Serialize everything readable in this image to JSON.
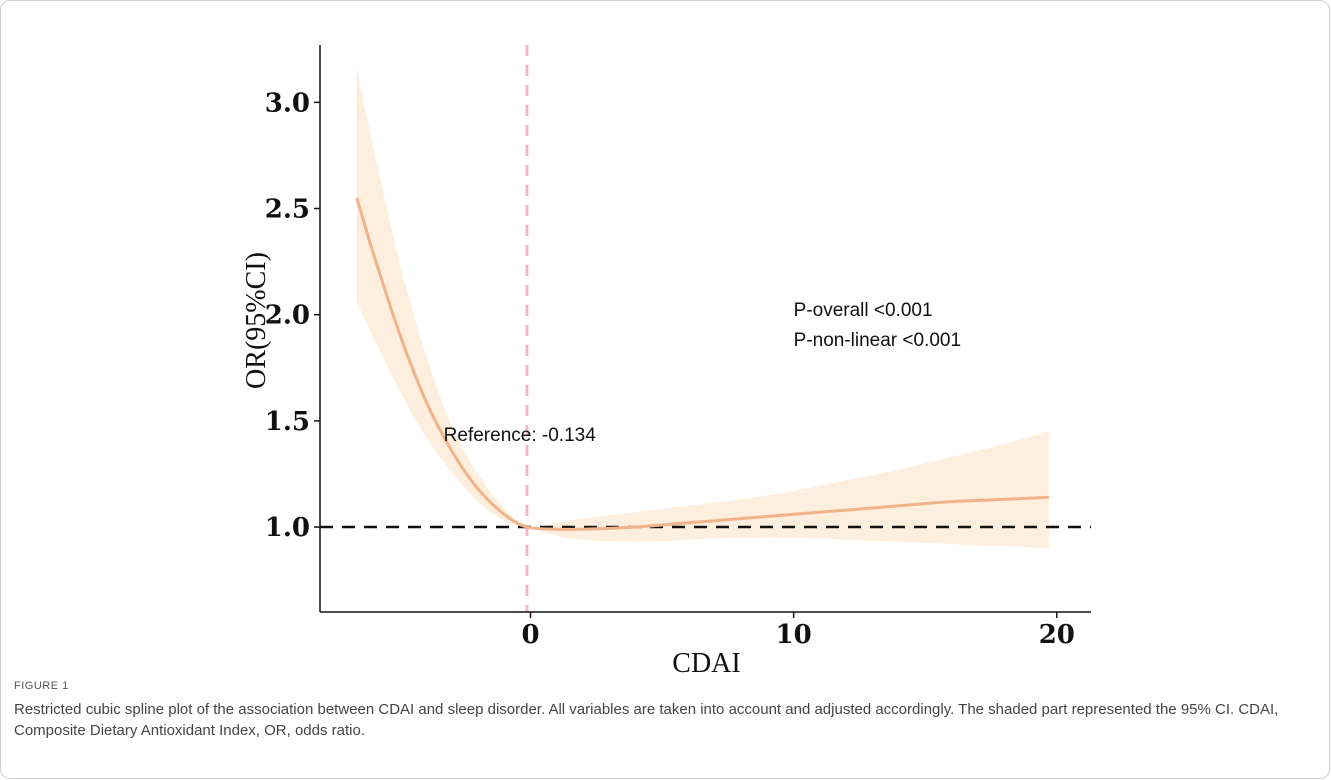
{
  "chart_data": {
    "type": "line",
    "xlabel": "CDAI",
    "ylabel": "OR(95%CI)",
    "xlim": [
      -8.0,
      21.3
    ],
    "ylim": [
      0.6,
      3.27
    ],
    "x_ticks": [
      0,
      10,
      20
    ],
    "x_tick_labels": [
      "0",
      "10",
      "20"
    ],
    "y_ticks": [
      1.0,
      1.5,
      2.0,
      2.5,
      3.0
    ],
    "y_tick_labels": [
      "1.0",
      "1.5",
      "2.0",
      "2.5",
      "3.0"
    ],
    "grid": false,
    "colors": {
      "line": "#f0b38a",
      "band": "#fdeedd",
      "reference": "#f4b6c2",
      "hline": "#111111"
    },
    "series": [
      {
        "x": [
          -6.6,
          -6.0,
          -5.0,
          -4.0,
          -3.0,
          -2.0,
          -1.0,
          -0.134,
          1.0,
          2.0,
          4.0,
          6.0,
          8.0,
          10.0,
          12.0,
          14.0,
          16.0,
          18.0,
          19.7
        ],
        "y": [
          2.55,
          2.3,
          1.92,
          1.6,
          1.36,
          1.18,
          1.06,
          1.0,
          0.99,
          0.99,
          1.0,
          1.02,
          1.04,
          1.06,
          1.08,
          1.1,
          1.12,
          1.13,
          1.14
        ],
        "lower": [
          2.06,
          1.9,
          1.65,
          1.43,
          1.26,
          1.12,
          1.03,
          1.0,
          0.96,
          0.94,
          0.93,
          0.94,
          0.95,
          0.95,
          0.94,
          0.93,
          0.92,
          0.91,
          0.9
        ],
        "upper": [
          3.16,
          2.8,
          2.26,
          1.82,
          1.48,
          1.25,
          1.09,
          1.0,
          1.02,
          1.04,
          1.07,
          1.1,
          1.13,
          1.17,
          1.22,
          1.27,
          1.33,
          1.39,
          1.45
        ]
      }
    ],
    "reference_x": -0.134,
    "reference_y": 1.0,
    "annotations": {
      "reference": "Reference: -0.134",
      "p_overall": "P-overall <0.001",
      "p_nonlinear": "P-non-linear <0.001"
    }
  },
  "figure": {
    "label": "FIGURE 1",
    "caption": "Restricted cubic spline plot of the association between CDAI and sleep disorder. All variables are taken into account and adjusted accordingly. The shaded part represented the 95% CI. CDAI, Composite Dietary Antioxidant Index, OR, odds ratio."
  }
}
